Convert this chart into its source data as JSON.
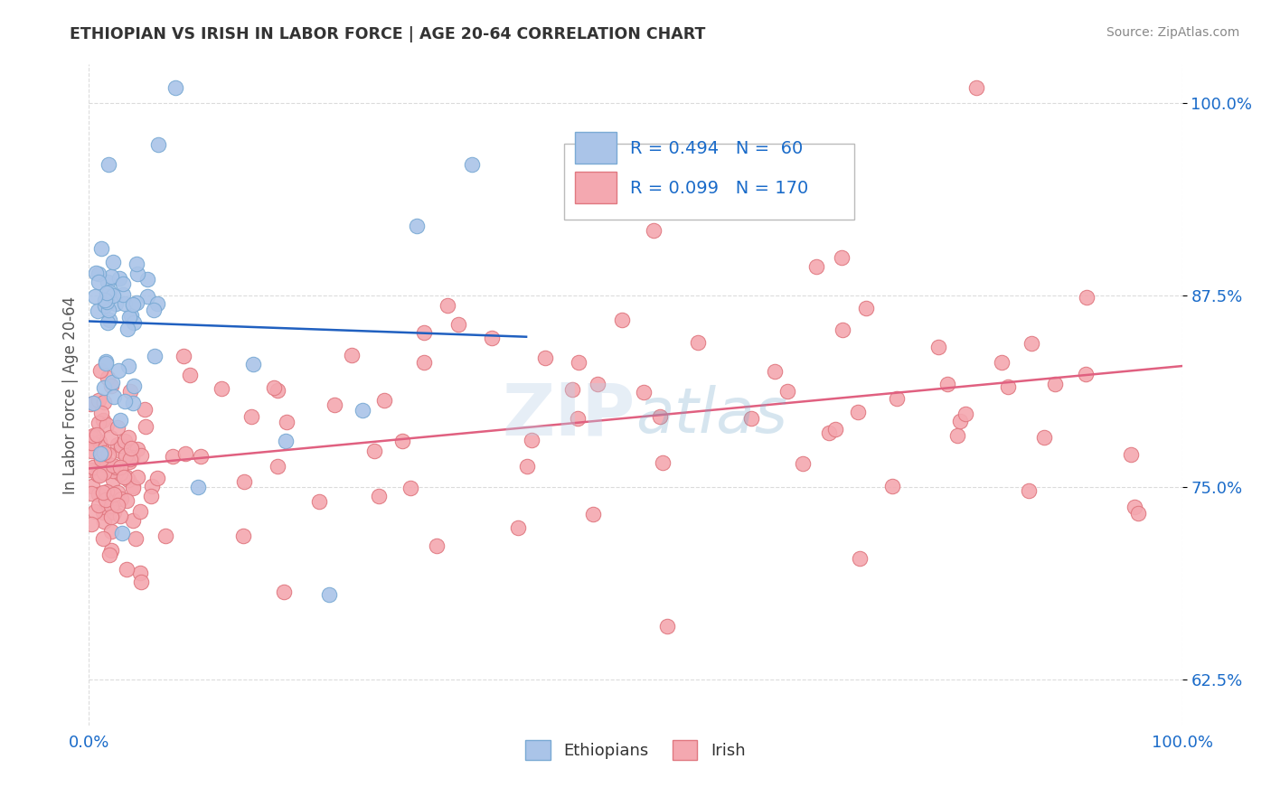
{
  "title": "ETHIOPIAN VS IRISH IN LABOR FORCE | AGE 20-64 CORRELATION CHART",
  "source": "Source: ZipAtlas.com",
  "ylabel": "In Labor Force | Age 20-64",
  "xlim": [
    0.0,
    1.0
  ],
  "ylim": [
    0.595,
    1.025
  ],
  "yticks": [
    0.625,
    0.75,
    0.875,
    1.0
  ],
  "ytick_labels": [
    "62.5%",
    "75.0%",
    "87.5%",
    "100.0%"
  ],
  "xticks": [
    0.0,
    1.0
  ],
  "xtick_labels": [
    "0.0%",
    "100.0%"
  ],
  "ethiopian_R": 0.494,
  "ethiopian_N": 60,
  "irish_R": 0.099,
  "irish_N": 170,
  "legend_R_color": "#1a6bc9",
  "ethiopian_color": "#aac4e8",
  "ethiopian_edge": "#7aaad4",
  "irish_color": "#f4a8b0",
  "irish_edge": "#e07880",
  "trendline_eth_color": "#2060c0",
  "trendline_irl_color": "#e06080",
  "background_color": "#ffffff",
  "grid_color": "#cccccc",
  "watermark_color": "#b8d0e8",
  "title_color": "#333333",
  "source_color": "#888888",
  "ylabel_color": "#555555"
}
